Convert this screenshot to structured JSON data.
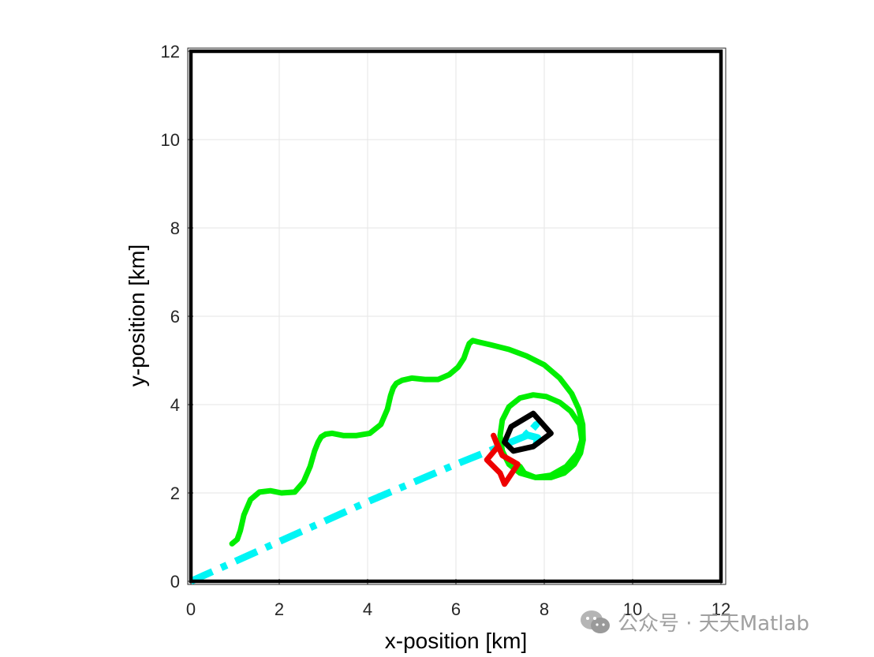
{
  "chart_data": {
    "type": "line",
    "title": "",
    "xlabel": "x-position [km]",
    "ylabel": "y-position [km]",
    "xlim": [
      0,
      12
    ],
    "ylim": [
      0,
      12
    ],
    "xticks": [
      0,
      2,
      4,
      6,
      8,
      10,
      12
    ],
    "yticks": [
      0,
      2,
      4,
      6,
      8,
      10,
      12
    ],
    "grid": true,
    "box_color": "#000000",
    "series": [
      {
        "color": "#00ee00",
        "style": "solid",
        "x": [
          0.93,
          1.05,
          1.12,
          1.2,
          1.35,
          1.55,
          1.8,
          2.05,
          2.35,
          2.55,
          2.7,
          2.8,
          2.88,
          2.95,
          3.05,
          3.2,
          3.45,
          3.75,
          4.05,
          4.3,
          4.45,
          4.52,
          4.58,
          4.65,
          4.78,
          5.0,
          5.3,
          5.6,
          5.85,
          6.05,
          6.18,
          6.25,
          6.3,
          6.38,
          6.5,
          6.8,
          7.2,
          7.6,
          8.0,
          8.35,
          8.62,
          8.78,
          8.87,
          8.88,
          8.82,
          8.68,
          8.45,
          8.15,
          7.8,
          7.45,
          7.2,
          7.05,
          7.0,
          7.05,
          7.2,
          7.45,
          7.75,
          8.05,
          8.35,
          8.6,
          8.8,
          8.85,
          8.75,
          8.5,
          8.15,
          7.8,
          7.55,
          7.45
        ],
        "y": [
          0.85,
          0.95,
          1.15,
          1.5,
          1.85,
          2.02,
          2.05,
          2.0,
          2.02,
          2.25,
          2.6,
          2.95,
          3.15,
          3.27,
          3.33,
          3.35,
          3.3,
          3.3,
          3.35,
          3.55,
          3.9,
          4.2,
          4.38,
          4.48,
          4.55,
          4.6,
          4.57,
          4.57,
          4.68,
          4.85,
          5.05,
          5.25,
          5.38,
          5.45,
          5.42,
          5.35,
          5.25,
          5.1,
          4.9,
          4.6,
          4.25,
          3.9,
          3.55,
          3.2,
          2.9,
          2.65,
          2.45,
          2.35,
          2.35,
          2.45,
          2.65,
          2.95,
          3.3,
          3.65,
          3.95,
          4.15,
          4.22,
          4.18,
          4.05,
          3.85,
          3.55,
          3.2,
          2.9,
          2.6,
          2.4,
          2.35,
          2.45,
          2.6
        ]
      },
      {
        "color": "#00f5f5",
        "style": "dashed",
        "x": [
          0.0,
          2.0,
          4.0,
          6.0,
          7.0,
          7.6,
          7.82,
          7.58,
          7.85,
          7.8
        ],
        "y": [
          0.0,
          0.9,
          1.8,
          2.65,
          3.05,
          3.3,
          3.55,
          3.32,
          3.25,
          3.0
        ]
      },
      {
        "color": "#000000",
        "style": "solid",
        "x": [
          7.25,
          7.75,
          8.15,
          7.75,
          7.3,
          7.1,
          7.25
        ],
        "y": [
          3.5,
          3.8,
          3.35,
          3.05,
          2.95,
          3.15,
          3.5
        ]
      },
      {
        "color": "#ee0000",
        "style": "solid",
        "x": [
          6.85,
          6.95,
          6.7,
          7.0,
          7.1,
          7.4,
          7.05,
          6.85
        ],
        "y": [
          3.3,
          3.05,
          2.75,
          2.45,
          2.2,
          2.65,
          2.85,
          3.3
        ]
      }
    ]
  },
  "watermark": {
    "text": "公众号 · 天天Matlab"
  }
}
